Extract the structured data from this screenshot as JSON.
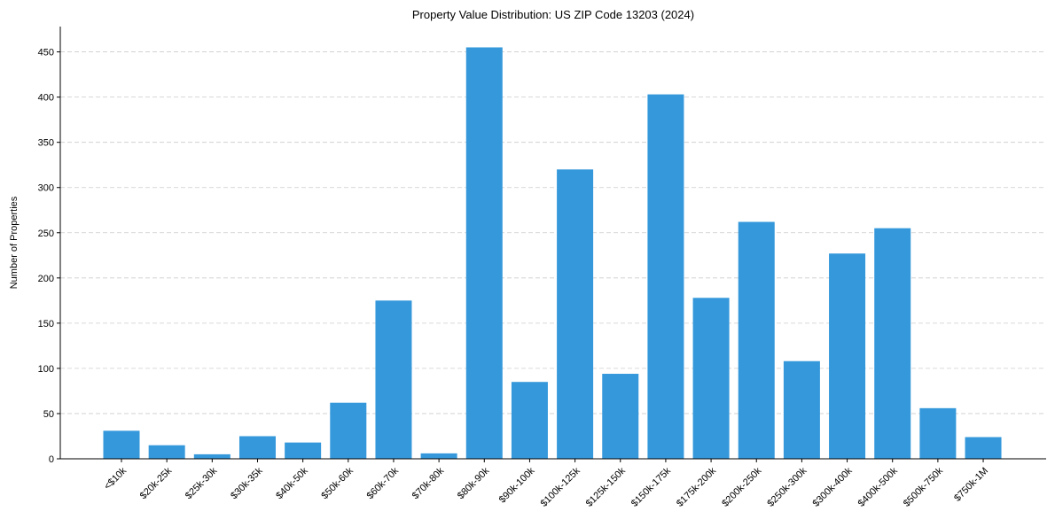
{
  "chart_data": {
    "type": "bar",
    "title": "Property Value Distribution: US ZIP Code 13203 (2024)",
    "xlabel": "",
    "ylabel": "Number of Properties",
    "categories": [
      "<$10k",
      "$20k-25k",
      "$25k-30k",
      "$30k-35k",
      "$40k-50k",
      "$50k-60k",
      "$60k-70k",
      "$70k-80k",
      "$80k-90k",
      "$90k-100k",
      "$100k-125k",
      "$125k-150k",
      "$150k-175k",
      "$175k-200k",
      "$200k-250k",
      "$250k-300k",
      "$300k-400k",
      "$400k-500k",
      "$500k-750k",
      "$750k-1M"
    ],
    "values": [
      31,
      15,
      5,
      25,
      18,
      62,
      175,
      6,
      455,
      85,
      320,
      94,
      403,
      178,
      262,
      108,
      227,
      255,
      56,
      24
    ],
    "ylim": [
      0,
      478
    ],
    "yticks": [
      0,
      50,
      100,
      150,
      200,
      250,
      300,
      350,
      400,
      450
    ],
    "grid": "y-dashed",
    "bar_color": "#3498db"
  }
}
